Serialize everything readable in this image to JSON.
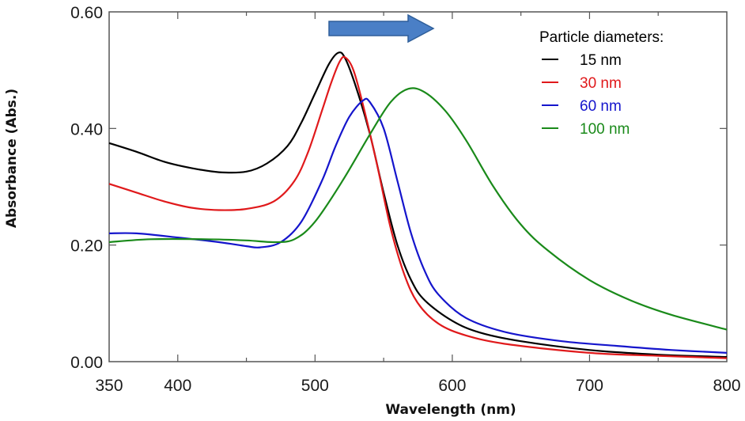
{
  "chart_data": {
    "type": "line",
    "xlabel": "Wavelength (nm)",
    "ylabel": "Absorbance (Abs.)",
    "xlim": [
      350,
      800
    ],
    "ylim": [
      0.0,
      0.6
    ],
    "x_ticks": [
      350,
      400,
      500,
      600,
      700,
      800
    ],
    "x_minor_ticks": [
      450,
      550,
      650,
      750
    ],
    "y_ticks": [
      0.0,
      0.2,
      0.4,
      0.6
    ],
    "y_tick_labels": [
      "0.00",
      "0.20",
      "0.40",
      "0.60"
    ],
    "grid": false,
    "legend": {
      "title": "Particle diameters:",
      "placement": "top-right",
      "entries": [
        "15 nm",
        "30 nm",
        "60 nm",
        "100 nm"
      ]
    },
    "annotation": {
      "type": "arrow",
      "direction": "right",
      "color": "#4a7fc6"
    },
    "series": [
      {
        "name": "15 nm",
        "color": "#000000",
        "points": [
          [
            350,
            0.375
          ],
          [
            370,
            0.36
          ],
          [
            390,
            0.343
          ],
          [
            410,
            0.332
          ],
          [
            430,
            0.325
          ],
          [
            450,
            0.326
          ],
          [
            465,
            0.34
          ],
          [
            480,
            0.37
          ],
          [
            490,
            0.41
          ],
          [
            500,
            0.46
          ],
          [
            510,
            0.51
          ],
          [
            517,
            0.53
          ],
          [
            522,
            0.52
          ],
          [
            530,
            0.47
          ],
          [
            540,
            0.39
          ],
          [
            550,
            0.29
          ],
          [
            560,
            0.2
          ],
          [
            570,
            0.14
          ],
          [
            580,
            0.105
          ],
          [
            600,
            0.07
          ],
          [
            620,
            0.05
          ],
          [
            650,
            0.035
          ],
          [
            700,
            0.02
          ],
          [
            750,
            0.012
          ],
          [
            800,
            0.008
          ]
        ]
      },
      {
        "name": "30 nm",
        "color": "#e0191b",
        "points": [
          [
            350,
            0.305
          ],
          [
            370,
            0.29
          ],
          [
            390,
            0.275
          ],
          [
            410,
            0.264
          ],
          [
            430,
            0.26
          ],
          [
            450,
            0.262
          ],
          [
            470,
            0.275
          ],
          [
            485,
            0.31
          ],
          [
            495,
            0.36
          ],
          [
            505,
            0.43
          ],
          [
            512,
            0.48
          ],
          [
            518,
            0.515
          ],
          [
            522,
            0.522
          ],
          [
            528,
            0.5
          ],
          [
            535,
            0.44
          ],
          [
            545,
            0.34
          ],
          [
            555,
            0.23
          ],
          [
            565,
            0.15
          ],
          [
            575,
            0.1
          ],
          [
            590,
            0.065
          ],
          [
            610,
            0.045
          ],
          [
            640,
            0.03
          ],
          [
            700,
            0.015
          ],
          [
            750,
            0.01
          ],
          [
            800,
            0.006
          ]
        ]
      },
      {
        "name": "60 nm",
        "color": "#1515cc",
        "points": [
          [
            350,
            0.22
          ],
          [
            370,
            0.22
          ],
          [
            400,
            0.213
          ],
          [
            430,
            0.205
          ],
          [
            450,
            0.198
          ],
          [
            460,
            0.196
          ],
          [
            475,
            0.205
          ],
          [
            490,
            0.24
          ],
          [
            505,
            0.31
          ],
          [
            515,
            0.37
          ],
          [
            525,
            0.42
          ],
          [
            535,
            0.448
          ],
          [
            540,
            0.445
          ],
          [
            550,
            0.4
          ],
          [
            560,
            0.31
          ],
          [
            570,
            0.22
          ],
          [
            580,
            0.155
          ],
          [
            590,
            0.115
          ],
          [
            610,
            0.075
          ],
          [
            640,
            0.05
          ],
          [
            680,
            0.035
          ],
          [
            720,
            0.027
          ],
          [
            760,
            0.02
          ],
          [
            800,
            0.015
          ]
        ]
      },
      {
        "name": "100 nm",
        "color": "#1a8a1a",
        "points": [
          [
            350,
            0.205
          ],
          [
            380,
            0.21
          ],
          [
            420,
            0.21
          ],
          [
            450,
            0.208
          ],
          [
            470,
            0.205
          ],
          [
            485,
            0.21
          ],
          [
            500,
            0.24
          ],
          [
            520,
            0.31
          ],
          [
            540,
            0.39
          ],
          [
            555,
            0.445
          ],
          [
            568,
            0.468
          ],
          [
            580,
            0.462
          ],
          [
            595,
            0.43
          ],
          [
            610,
            0.38
          ],
          [
            630,
            0.3
          ],
          [
            650,
            0.235
          ],
          [
            670,
            0.19
          ],
          [
            700,
            0.14
          ],
          [
            730,
            0.105
          ],
          [
            760,
            0.08
          ],
          [
            800,
            0.055
          ]
        ]
      }
    ]
  }
}
